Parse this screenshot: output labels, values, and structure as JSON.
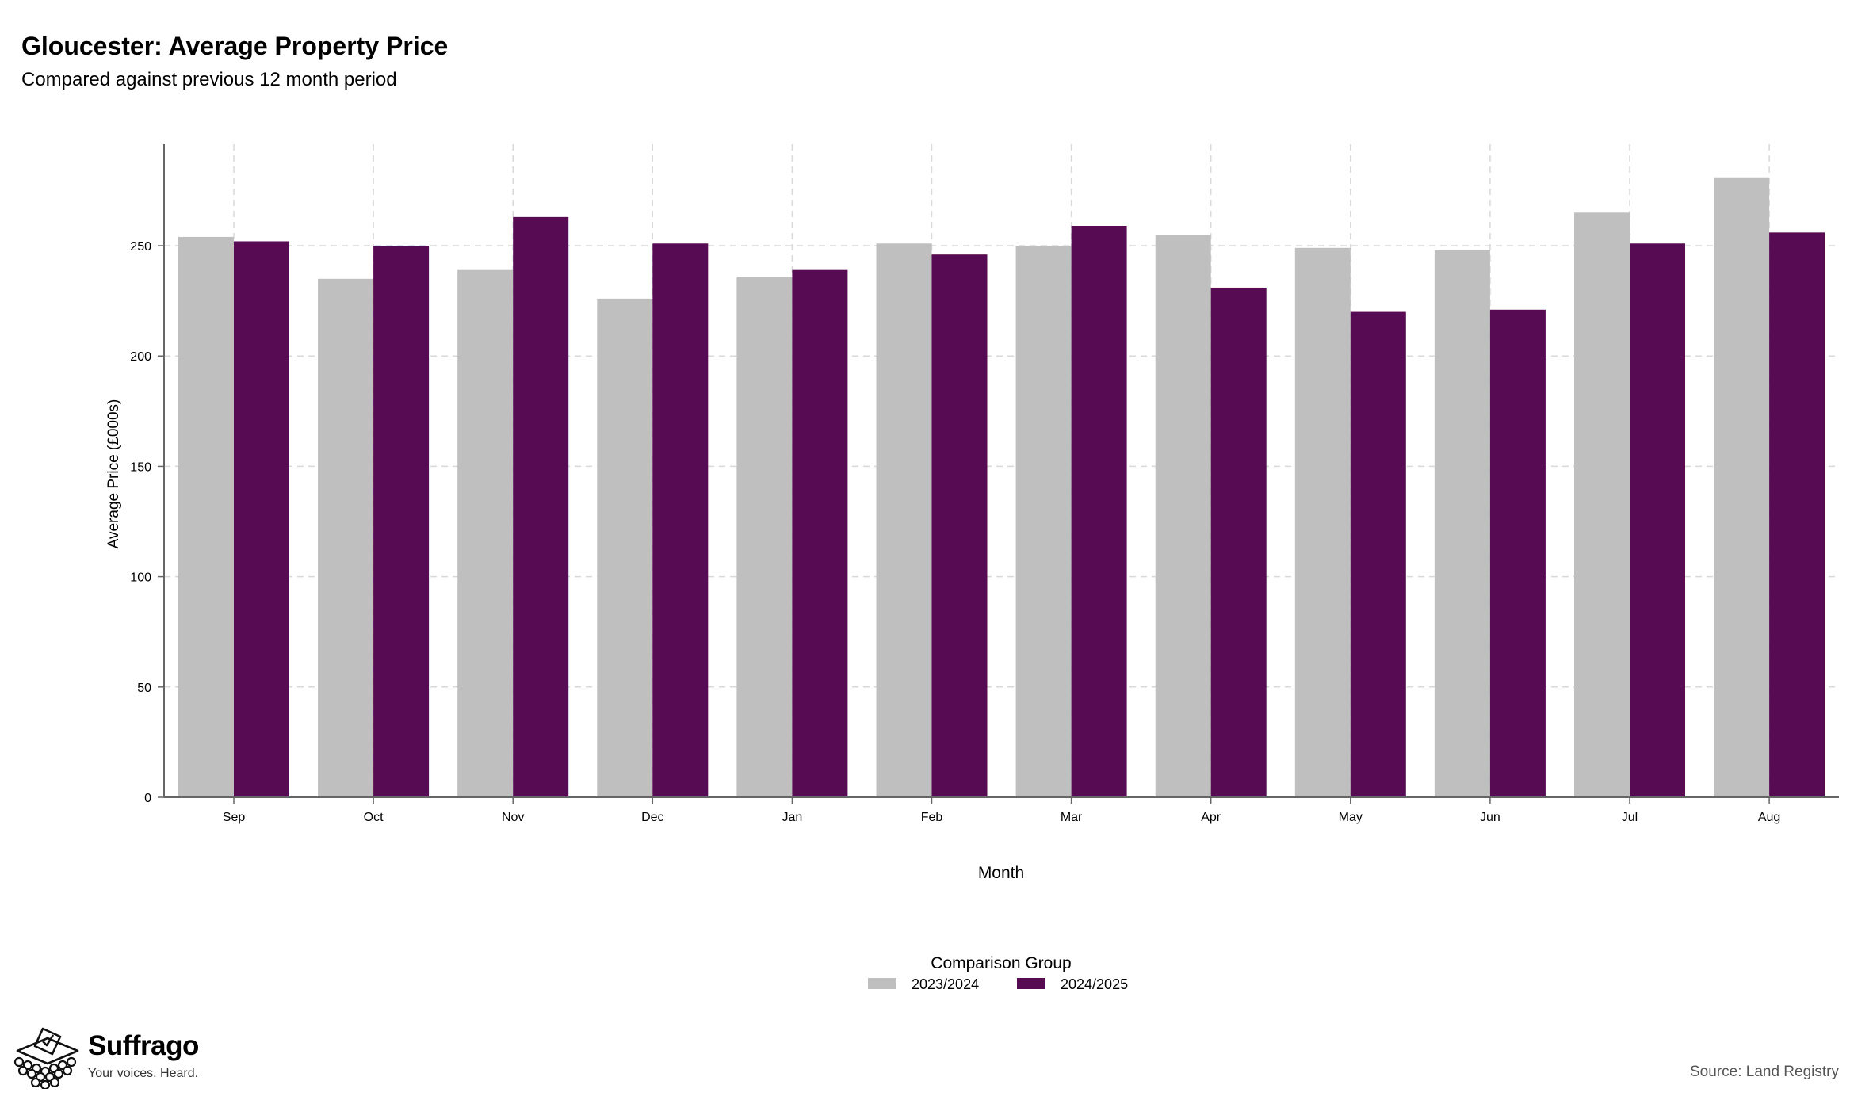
{
  "header": {
    "title": "Gloucester: Average Property Price",
    "subtitle": "Compared against previous 12 month period"
  },
  "footer": {
    "brand_name": "Suffrago",
    "brand_tagline": "Your voices. Heard.",
    "source": "Source: Land Registry"
  },
  "chart_data": {
    "type": "bar",
    "title": "Gloucester: Average Property Price",
    "subtitle": "Compared against previous 12 month period",
    "xlabel": "Month",
    "ylabel": "Average Price (£000s)",
    "categories": [
      "Sep",
      "Oct",
      "Nov",
      "Dec",
      "Jan",
      "Feb",
      "Mar",
      "Apr",
      "May",
      "Jun",
      "Jul",
      "Aug"
    ],
    "series": [
      {
        "name": "2023/2024",
        "color": "#bfbfbf",
        "values": [
          254,
          235,
          239,
          226,
          236,
          251,
          250,
          255,
          249,
          248,
          265,
          281
        ]
      },
      {
        "name": "2024/2025",
        "color": "#560b53",
        "values": [
          252,
          250,
          263,
          251,
          239,
          246,
          259,
          231,
          220,
          221,
          251,
          256
        ]
      }
    ],
    "ylim": [
      0,
      296
    ],
    "yticks": [
      0,
      50,
      100,
      150,
      200,
      250
    ],
    "grid": true,
    "legend_title": "Comparison Group",
    "legend_position": "bottom-center"
  }
}
